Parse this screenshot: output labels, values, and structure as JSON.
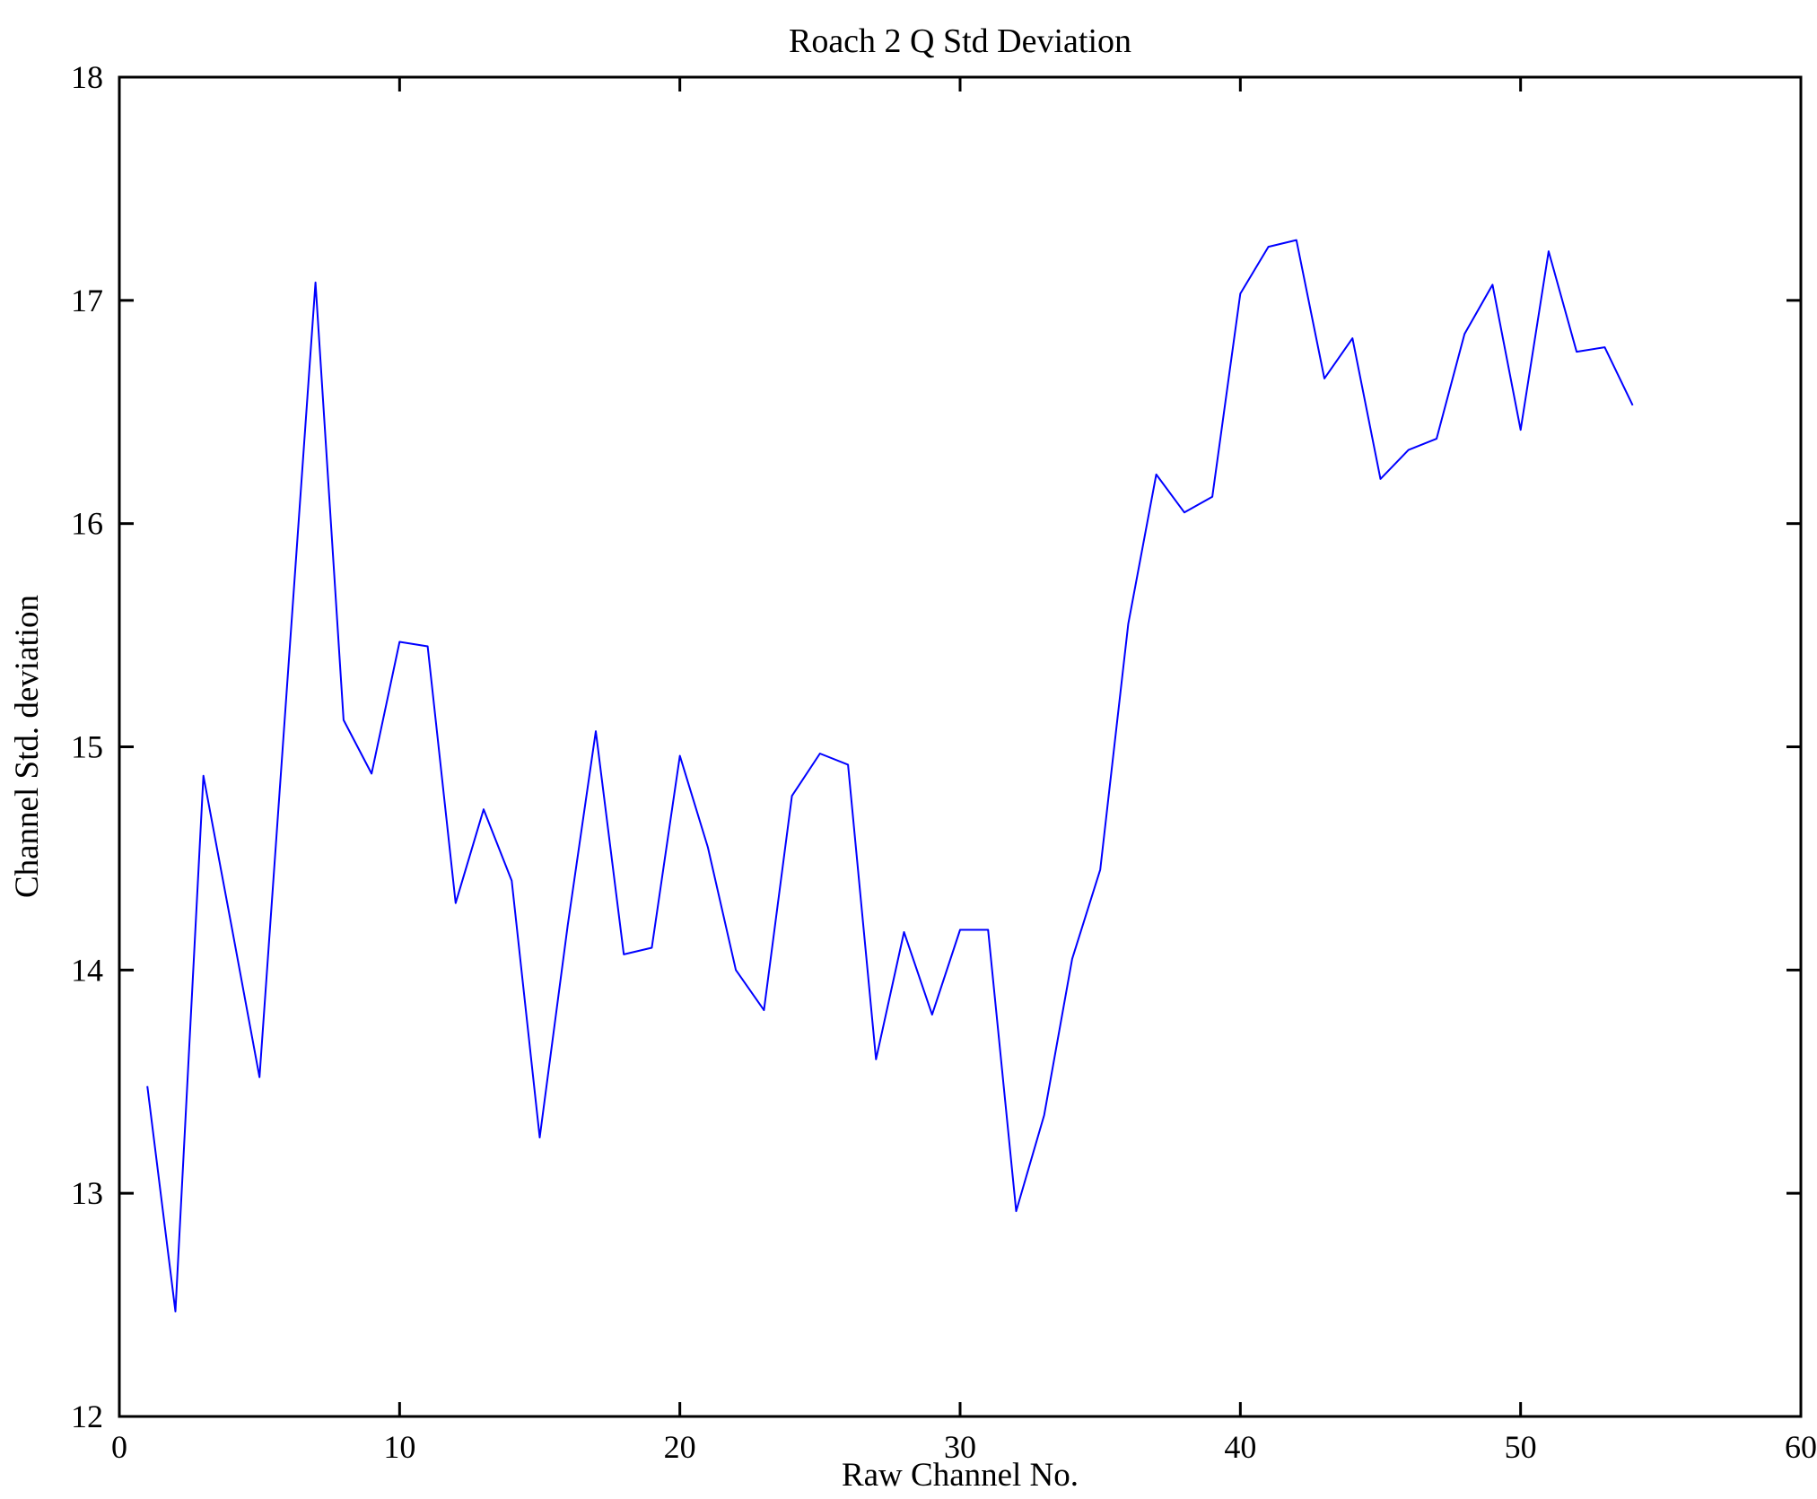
{
  "figure": {
    "title": "Roach 2 Q Std Deviation",
    "xlabel": "Raw Channel No.",
    "ylabel": "Channel Std. deviation"
  },
  "chart_data": {
    "type": "line",
    "title": "Roach 2 Q Std Deviation",
    "xlabel": "Raw Channel No.",
    "ylabel": "Channel Std. deviation",
    "xlim": [
      0,
      60
    ],
    "ylim": [
      12,
      18
    ],
    "xticks": [
      0,
      10,
      20,
      30,
      40,
      50,
      60
    ],
    "yticks": [
      12,
      13,
      14,
      15,
      16,
      17,
      18
    ],
    "grid": false,
    "legend": null,
    "line_color": "#0000FF",
    "frame_color": "#000000",
    "series": [
      {
        "name": "Channel Std. deviation",
        "x": [
          1,
          2,
          3,
          4,
          5,
          6,
          7,
          8,
          9,
          10,
          11,
          12,
          13,
          14,
          15,
          16,
          17,
          18,
          19,
          20,
          21,
          22,
          23,
          24,
          25,
          26,
          27,
          28,
          29,
          30,
          31,
          32,
          33,
          34,
          35,
          36,
          37,
          38,
          39,
          40,
          41,
          42,
          43,
          44,
          45,
          46,
          47,
          48,
          49,
          50,
          51,
          52,
          53,
          54
        ],
        "y": [
          13.48,
          12.47,
          14.87,
          14.2,
          13.52,
          15.3,
          17.08,
          15.12,
          14.88,
          15.47,
          15.45,
          14.3,
          14.72,
          14.4,
          13.25,
          14.2,
          15.07,
          14.07,
          14.1,
          14.96,
          14.55,
          14.0,
          13.82,
          14.78,
          14.97,
          14.92,
          13.6,
          14.17,
          13.8,
          14.18,
          14.18,
          12.92,
          13.35,
          14.05,
          14.45,
          15.55,
          16.22,
          16.05,
          16.12,
          17.03,
          17.24,
          17.27,
          16.65,
          16.83,
          16.2,
          16.33,
          16.38,
          16.85,
          17.07,
          16.42,
          17.22,
          16.77,
          16.79,
          16.53
        ]
      }
    ]
  }
}
